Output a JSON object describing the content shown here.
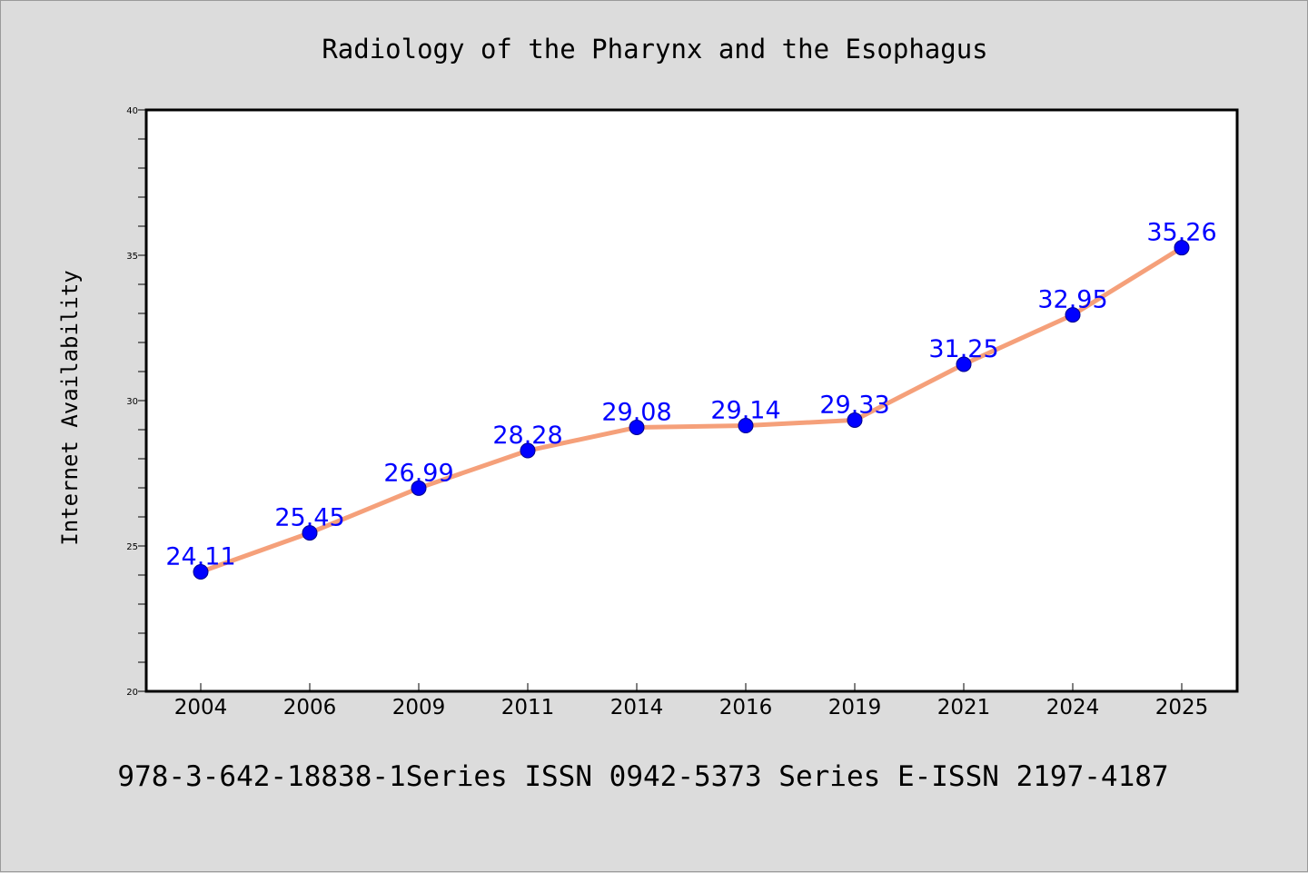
{
  "chart_data": {
    "type": "line",
    "title": "Radiology of the Pharynx and the Esophagus",
    "xlabel": "",
    "ylabel": "Internet Availability",
    "categories": [
      "2004",
      "2006",
      "2009",
      "2011",
      "2014",
      "2016",
      "2019",
      "2021",
      "2024",
      "2025"
    ],
    "series": [
      {
        "values": [
          24.11,
          25.45,
          26.99,
          28.28,
          29.08,
          29.14,
          29.33,
          31.25,
          32.95,
          35.26
        ],
        "data_labels": [
          "24.11",
          "25.45",
          "26.99",
          "28.28",
          "29.08",
          "29.14",
          "29.33",
          "31.25",
          "32.95",
          "35.26"
        ],
        "line_color": "#f5a07a",
        "marker_color": "#0000ff",
        "label_color": "#0000ff"
      }
    ],
    "ylim": [
      20,
      40
    ],
    "yticks": [
      "20",
      "25",
      "30",
      "35",
      "40"
    ],
    "grid": false,
    "legend": "none"
  },
  "footer": {
    "text": "978-3-642-18838-1Series ISSN 0942-5373 Series E-ISSN 2197-4187"
  },
  "colors": {
    "background": "#dcdcdc",
    "plot_background": "#ffffff",
    "axis": "#000000"
  }
}
